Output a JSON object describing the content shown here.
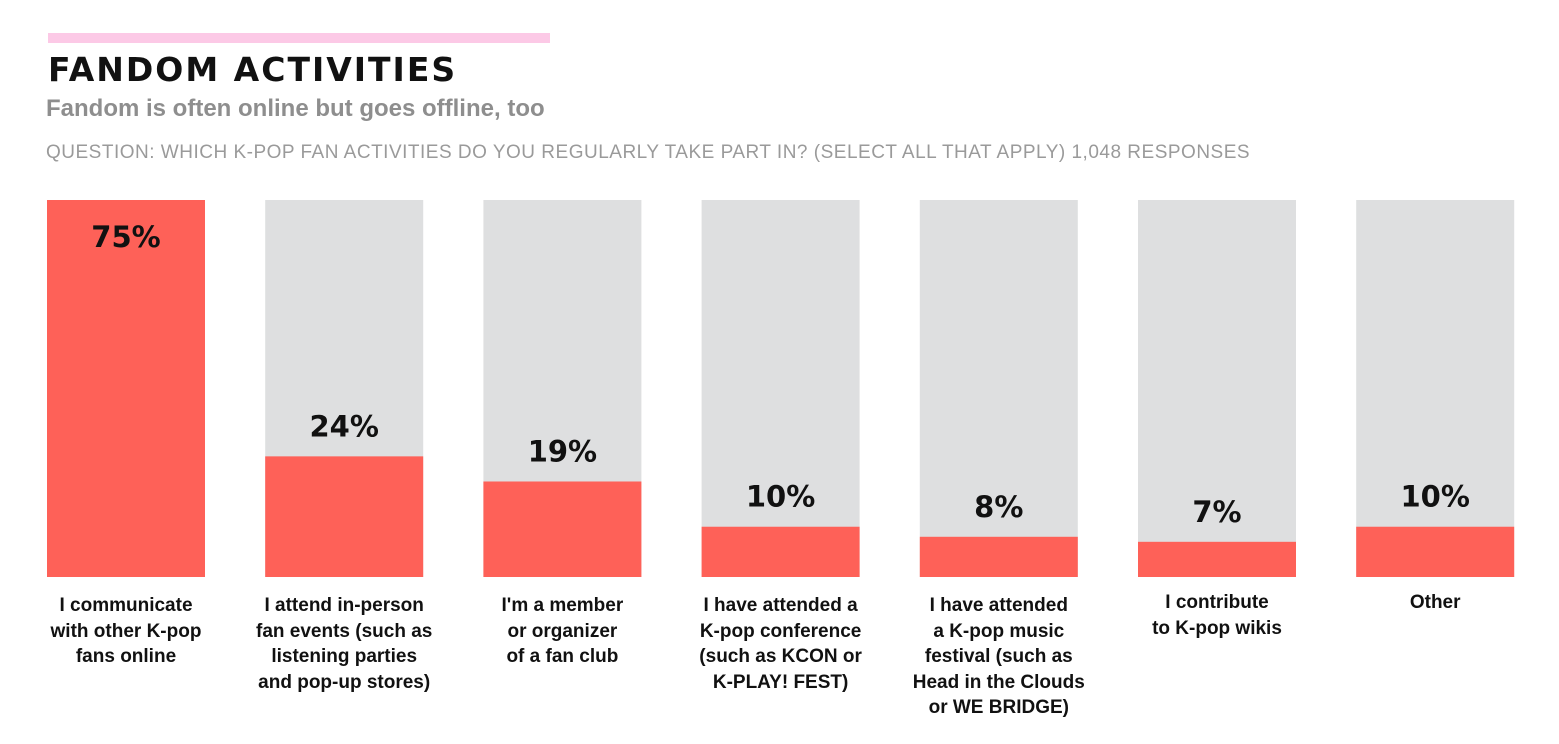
{
  "header": {
    "title": "FANDOM ACTIVITIES",
    "subtitle": "Fandom is often online but goes offline, too",
    "question": "QUESTION: WHICH K-POP FAN ACTIVITIES DO YOU REGULARLY TAKE PART IN? (SELECT ALL THAT APPLY) 1,048 RESPONSES"
  },
  "colors": {
    "accent": "#fcc9e6",
    "fill": "#fe6158",
    "track": "#dedfe0"
  },
  "chart_data": {
    "type": "bar",
    "categories": [
      "I communicate with other K-pop fans online",
      "I attend in-person fan events (such as listening parties and pop-up stores)",
      "I'm a member or organizer of a fan club",
      "I have attended a K-pop conference (such as KCON or K-PLAY! FEST)",
      "I have attended a K-pop music festival (such as Head in the Clouds or WE BRIDGE)",
      "I contribute to K-pop wikis",
      "Other"
    ],
    "category_lines": [
      [
        "I communicate",
        "with other K-pop",
        "fans online"
      ],
      [
        "I attend in-person",
        "fan events (such as",
        "listening parties",
        "and pop-up stores)"
      ],
      [
        "I'm a member",
        "or organizer",
        "of a fan club"
      ],
      [
        "I have attended a",
        "K-pop conference",
        "(such as KCON or",
        "K-PLAY! FEST)"
      ],
      [
        "I have attended",
        "a K-pop music",
        "festival (such as",
        "Head in the Clouds",
        "or WE BRIDGE)"
      ],
      [
        "I contribute",
        "to K-pop wikis"
      ],
      [
        "Other"
      ]
    ],
    "values": [
      75,
      24,
      19,
      10,
      8,
      7,
      10
    ],
    "value_labels": [
      "75%",
      "24%",
      "19%",
      "10%",
      "8%",
      "7%",
      "10%"
    ],
    "ylim": [
      0,
      75
    ],
    "grid": false,
    "legend": "none"
  }
}
